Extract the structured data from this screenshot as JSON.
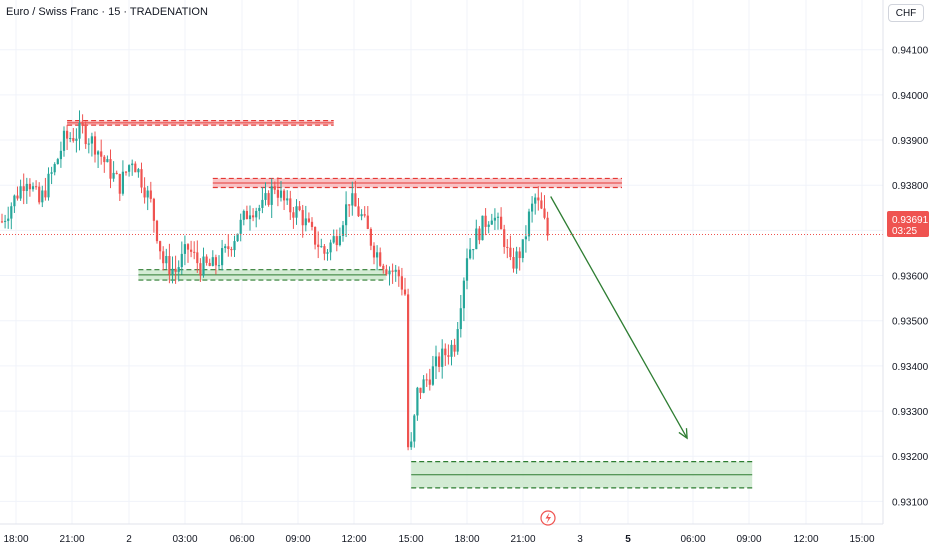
{
  "title": "Euro / Swiss Franc · 15 · TRADENATION",
  "currency": "CHF",
  "price_label": {
    "price": "0.93691",
    "countdown": "03:25"
  },
  "colors": {
    "up": "#26a69a",
    "down": "#ef5350",
    "grid": "#f0f3fa",
    "resistance_fill": "#f7b5b8",
    "resistance_line": "#e53935",
    "support_fill": "#c8e6c9",
    "support_line": "#2e7d32",
    "arrow": "#2e7d32",
    "price_line": "#ef5350"
  },
  "icons": {
    "bottom_logo": "lightning-bolt-icon"
  },
  "chart_data": {
    "type": "candlestick",
    "y_range": [
      0.9305,
      0.9421
    ],
    "y_ticks": [
      "0.93100",
      "0.93200",
      "0.93300",
      "0.93400",
      "0.93500",
      "0.93600",
      "0.93700",
      "0.93800",
      "0.93900",
      "0.94000",
      "0.94100"
    ],
    "x_ticks": [
      {
        "label": "18:00",
        "bold": false
      },
      {
        "label": "21:00",
        "bold": false
      },
      {
        "label": "2",
        "bold": false
      },
      {
        "label": "03:00",
        "bold": false
      },
      {
        "label": "06:00",
        "bold": false
      },
      {
        "label": "09:00",
        "bold": false
      },
      {
        "label": "12:00",
        "bold": false
      },
      {
        "label": "15:00",
        "bold": false
      },
      {
        "label": "18:00",
        "bold": false
      },
      {
        "label": "21:00",
        "bold": false
      },
      {
        "label": "3",
        "bold": false
      },
      {
        "label": "5",
        "bold": true
      },
      {
        "label": "06:00",
        "bold": false
      },
      {
        "label": "09:00",
        "bold": false
      },
      {
        "label": "12:00",
        "bold": false
      },
      {
        "label": "15:00",
        "bold": false
      }
    ],
    "anchors": [
      [
        0,
        0.9372
      ],
      [
        8,
        0.9382
      ],
      [
        12,
        0.9376
      ],
      [
        17,
        0.9384
      ],
      [
        20,
        0.939
      ],
      [
        26,
        0.9392
      ],
      [
        30,
        0.9389
      ],
      [
        34,
        0.9384
      ],
      [
        38,
        0.938
      ],
      [
        42,
        0.9386
      ],
      [
        44,
        0.9383
      ],
      [
        48,
        0.9376
      ],
      [
        52,
        0.9363
      ],
      [
        56,
        0.9361
      ],
      [
        60,
        0.9366
      ],
      [
        64,
        0.9362
      ],
      [
        68,
        0.9362
      ],
      [
        72,
        0.9365
      ],
      [
        76,
        0.937
      ],
      [
        80,
        0.9375
      ],
      [
        84,
        0.9375
      ],
      [
        88,
        0.938
      ],
      [
        92,
        0.9375
      ],
      [
        96,
        0.9374
      ],
      [
        100,
        0.9369
      ],
      [
        104,
        0.9365
      ],
      [
        108,
        0.9369
      ],
      [
        112,
        0.9377
      ],
      [
        116,
        0.9373
      ],
      [
        120,
        0.9366
      ],
      [
        124,
        0.9362
      ],
      [
        128,
        0.936
      ],
      [
        130,
        0.9356
      ],
      [
        132,
        0.9322
      ],
      [
        134,
        0.9334
      ],
      [
        138,
        0.9338
      ],
      [
        142,
        0.9342
      ],
      [
        146,
        0.9345
      ],
      [
        150,
        0.9365
      ],
      [
        154,
        0.937
      ],
      [
        158,
        0.9374
      ],
      [
        162,
        0.9368
      ],
      [
        164,
        0.9362
      ],
      [
        168,
        0.9366
      ],
      [
        170,
        0.9373
      ],
      [
        172,
        0.9377
      ],
      [
        174,
        0.9374
      ],
      [
        176,
        0.9369
      ]
    ],
    "zones": [
      {
        "kind": "resistance",
        "top": 0.93943,
        "bottom": 0.93933,
        "t_start": 21,
        "t_end": 107
      },
      {
        "kind": "resistance",
        "top": 0.93815,
        "bottom": 0.93795,
        "t_start": 68,
        "t_end": 200
      },
      {
        "kind": "support",
        "top": 0.93613,
        "bottom": 0.9359,
        "t_start": 44,
        "t_end": 124
      },
      {
        "kind": "support",
        "top": 0.93188,
        "bottom": 0.9313,
        "t_start": 132,
        "t_end": 242
      }
    ],
    "current_price": 0.93691,
    "arrow": {
      "t_start": 177,
      "p_start": 0.93775,
      "t_end": 221,
      "p_end": 0.9324
    }
  }
}
